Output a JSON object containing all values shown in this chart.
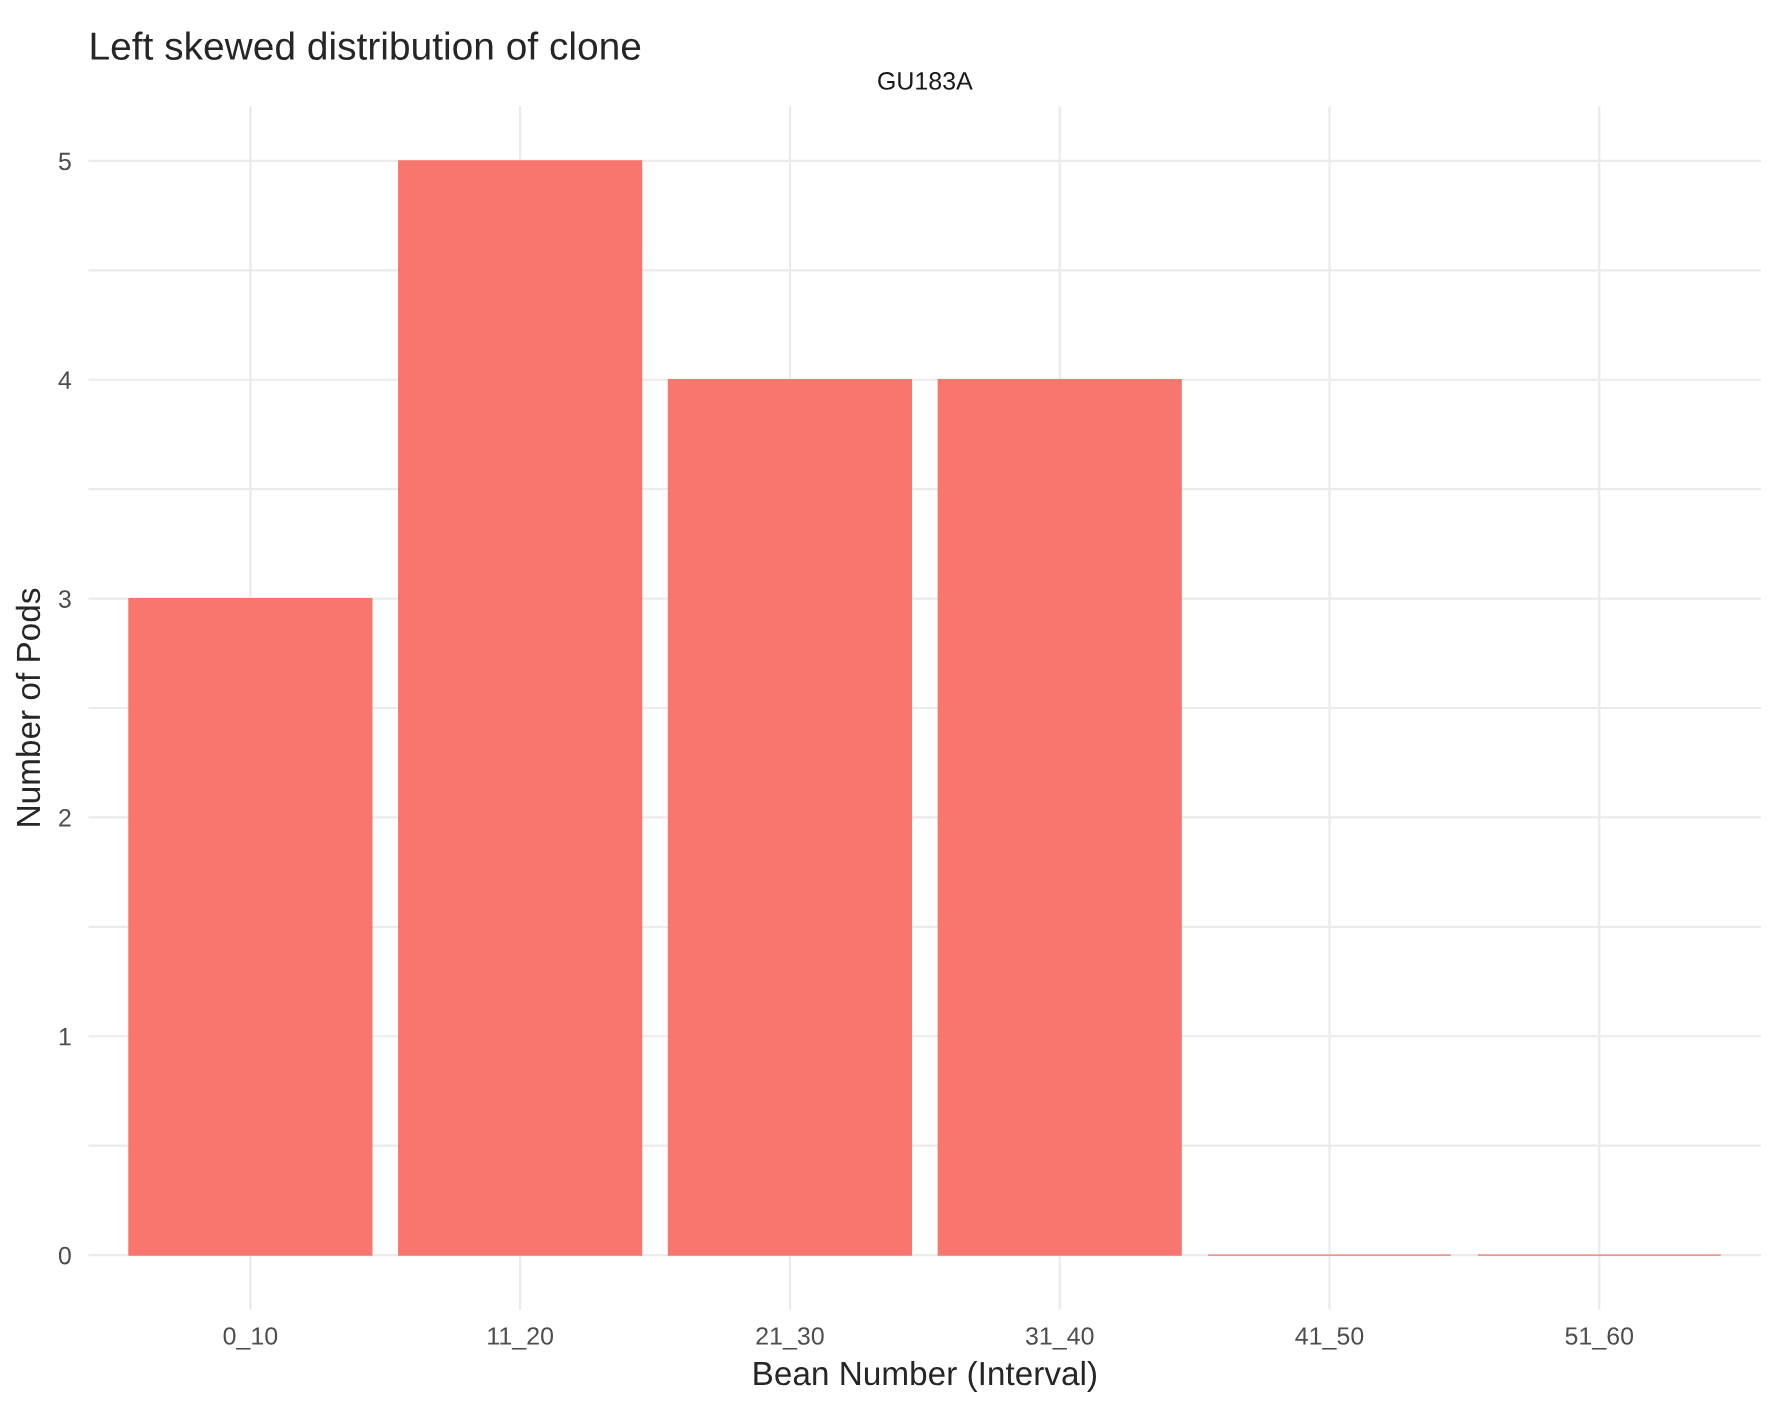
{
  "chart_data": {
    "type": "bar",
    "title": "Left skewed distribution of clone",
    "subtitle": "GU183A",
    "xlabel": "Bean Number (Interval)",
    "ylabel": "Number of Pods",
    "categories": [
      "0_10",
      "11_20",
      "21_30",
      "31_40",
      "41_50",
      "51_60"
    ],
    "values": [
      3,
      5,
      4,
      4,
      0,
      0
    ],
    "color": "#f8766d",
    "ylim": [
      -0.25,
      5.25
    ],
    "yticks": [
      0,
      1,
      2,
      3,
      4,
      5
    ],
    "grid": true,
    "legend": false
  }
}
